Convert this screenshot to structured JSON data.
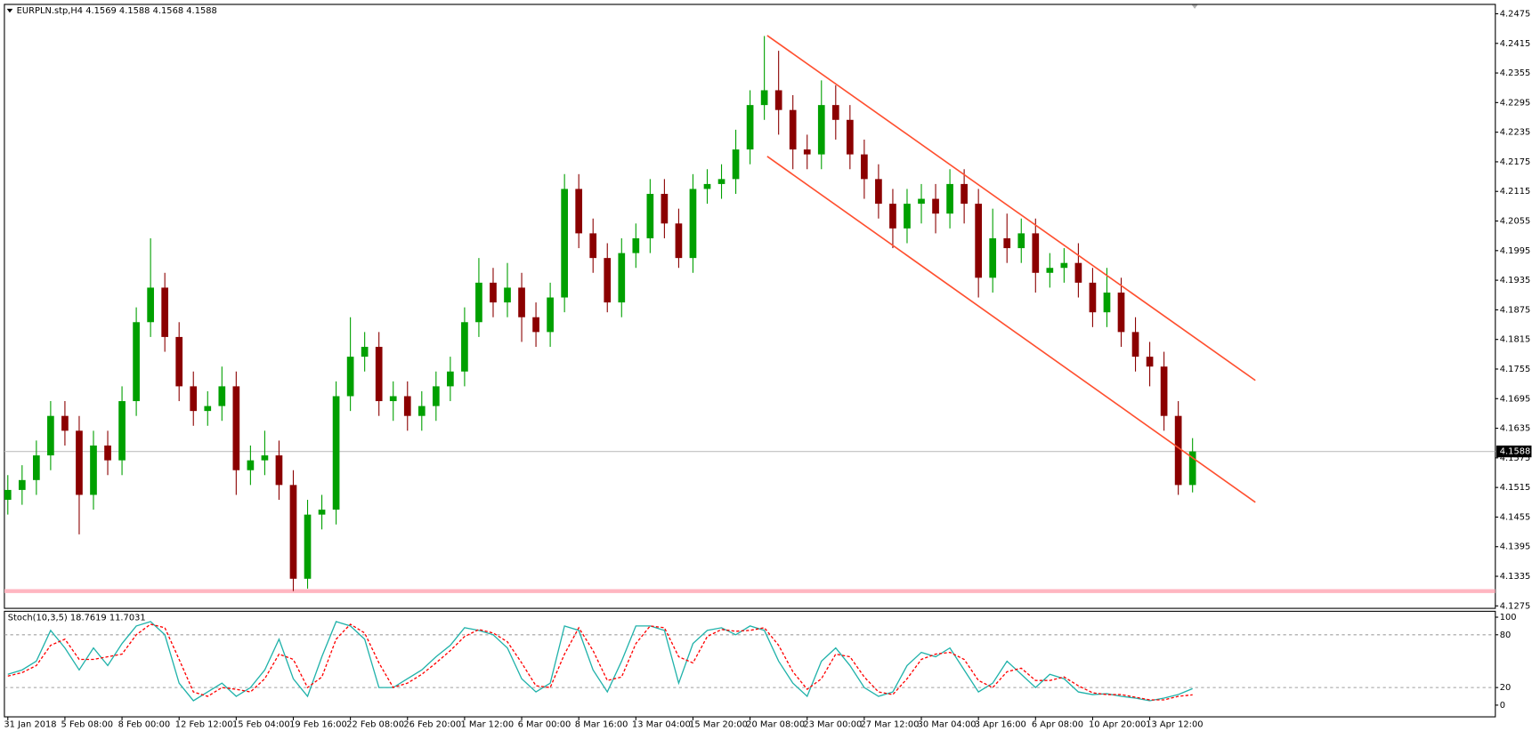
{
  "chart_data": [
    {
      "type": "candlestick",
      "title": "EURPLN.stp,H4",
      "quote": "4.1569 4.1588 4.1568 4.1588",
      "categories": [
        "31 Jan 2018",
        null,
        null,
        null,
        "5 Feb 08:00",
        null,
        null,
        null,
        "8 Feb 00:00",
        null,
        null,
        null,
        "12 Feb 12:00",
        null,
        null,
        null,
        "15 Feb 04:00",
        null,
        null,
        null,
        "19 Feb 16:00",
        null,
        null,
        null,
        "22 Feb 08:00",
        null,
        null,
        null,
        "26 Feb 20:00",
        null,
        null,
        null,
        "1 Mar 12:00",
        null,
        null,
        null,
        "6 Mar 00:00",
        null,
        null,
        null,
        "8 Mar 16:00",
        null,
        null,
        null,
        "13 Mar 04:00",
        null,
        null,
        null,
        "15 Mar 20:00",
        null,
        null,
        null,
        "20 Mar 08:00",
        null,
        null,
        null,
        "23 Mar 00:00",
        null,
        null,
        null,
        "27 Mar 12:00",
        null,
        null,
        null,
        "30 Mar 04:00",
        null,
        null,
        null,
        "3 Apr 16:00",
        null,
        null,
        null,
        "6 Apr 08:00",
        null,
        null,
        null,
        "10 Apr 20:00",
        null,
        null,
        null,
        "13 Apr 12:00",
        null,
        null,
        null
      ],
      "open": [
        4.149,
        4.151,
        4.153,
        4.158,
        4.166,
        4.163,
        4.15,
        4.16,
        4.157,
        4.169,
        4.185,
        4.192,
        4.182,
        4.172,
        4.167,
        4.168,
        4.172,
        4.155,
        4.157,
        4.158,
        4.152,
        4.133,
        4.146,
        4.147,
        4.17,
        4.178,
        4.18,
        4.169,
        4.17,
        4.166,
        4.168,
        4.172,
        4.175,
        4.185,
        4.193,
        4.189,
        4.192,
        4.186,
        4.183,
        4.19,
        4.212,
        4.203,
        4.198,
        4.189,
        4.199,
        4.202,
        4.211,
        4.205,
        4.198,
        4.212,
        4.213,
        4.214,
        4.22,
        4.229,
        4.232,
        4.228,
        4.22,
        4.219,
        4.229,
        4.226,
        4.219,
        4.214,
        4.209,
        4.204,
        4.209,
        4.21,
        4.207,
        4.213,
        4.209,
        4.194,
        4.202,
        4.2,
        4.203,
        4.195,
        4.196,
        4.197,
        4.193,
        4.187,
        4.191,
        4.183,
        4.178,
        4.176,
        4.166,
        4.152
      ],
      "high": [
        4.154,
        4.156,
        4.161,
        4.169,
        4.169,
        4.166,
        4.163,
        4.163,
        4.172,
        4.188,
        4.202,
        4.195,
        4.185,
        4.175,
        4.171,
        4.176,
        4.175,
        4.16,
        4.163,
        4.161,
        4.155,
        4.149,
        4.15,
        4.173,
        4.186,
        4.183,
        4.183,
        4.173,
        4.173,
        4.171,
        4.175,
        4.178,
        4.188,
        4.198,
        4.196,
        4.197,
        4.195,
        4.189,
        4.193,
        4.215,
        4.215,
        4.206,
        4.201,
        4.202,
        4.205,
        4.214,
        4.214,
        4.208,
        4.215,
        4.216,
        4.217,
        4.224,
        4.232,
        4.243,
        4.24,
        4.231,
        4.223,
        4.234,
        4.233,
        4.229,
        4.222,
        4.217,
        4.212,
        4.212,
        4.213,
        4.213,
        4.216,
        4.216,
        4.212,
        4.208,
        4.207,
        4.206,
        4.206,
        4.199,
        4.2,
        4.201,
        4.196,
        4.196,
        4.194,
        4.186,
        4.181,
        4.179,
        4.169,
        4.1615
      ],
      "low": [
        4.146,
        4.148,
        4.15,
        4.155,
        4.16,
        4.142,
        4.147,
        4.154,
        4.154,
        4.166,
        4.182,
        4.179,
        4.169,
        4.164,
        4.164,
        4.165,
        4.15,
        4.152,
        4.154,
        4.149,
        4.1305,
        4.131,
        4.143,
        4.144,
        4.167,
        4.175,
        4.166,
        4.165,
        4.163,
        4.163,
        4.165,
        4.169,
        4.172,
        4.182,
        4.186,
        4.186,
        4.181,
        4.18,
        4.18,
        4.187,
        4.2,
        4.195,
        4.187,
        4.186,
        4.196,
        4.199,
        4.202,
        4.196,
        4.195,
        4.209,
        4.21,
        4.211,
        4.217,
        4.226,
        4.223,
        4.216,
        4.216,
        4.216,
        4.222,
        4.216,
        4.21,
        4.206,
        4.2,
        4.201,
        4.205,
        4.203,
        4.204,
        4.205,
        4.19,
        4.191,
        4.197,
        4.197,
        4.191,
        4.192,
        4.193,
        4.19,
        4.184,
        4.184,
        4.18,
        4.175,
        4.172,
        4.163,
        4.15,
        4.1505
      ],
      "close": [
        4.151,
        4.153,
        4.158,
        4.166,
        4.163,
        4.15,
        4.16,
        4.157,
        4.169,
        4.185,
        4.192,
        4.182,
        4.172,
        4.167,
        4.168,
        4.172,
        4.155,
        4.157,
        4.158,
        4.152,
        4.133,
        4.146,
        4.147,
        4.17,
        4.178,
        4.18,
        4.169,
        4.17,
        4.166,
        4.168,
        4.172,
        4.175,
        4.185,
        4.193,
        4.189,
        4.192,
        4.186,
        4.183,
        4.19,
        4.212,
        4.203,
        4.198,
        4.189,
        4.199,
        4.202,
        4.211,
        4.205,
        4.198,
        4.212,
        4.213,
        4.214,
        4.22,
        4.229,
        4.232,
        4.228,
        4.22,
        4.219,
        4.229,
        4.226,
        4.219,
        4.214,
        4.209,
        4.204,
        4.209,
        4.21,
        4.207,
        4.213,
        4.209,
        4.194,
        4.202,
        4.2,
        4.203,
        4.195,
        4.196,
        4.197,
        4.193,
        4.187,
        4.191,
        4.183,
        4.178,
        4.176,
        4.166,
        4.152,
        4.1588
      ],
      "up_color": "#00a000",
      "down_color": "#8b0000",
      "ylim": [
        4.1271,
        4.2493
      ],
      "yticks": [
        4.2475,
        4.2415,
        4.2355,
        4.2295,
        4.2235,
        4.2175,
        4.2115,
        4.2055,
        4.1995,
        4.1935,
        4.1875,
        4.1815,
        4.1755,
        4.1695,
        4.1635,
        4.1575,
        4.1515,
        4.1455,
        4.1395,
        4.1335,
        4.1275
      ],
      "current_price": 4.1588,
      "levels": [
        {
          "value": 4.1305,
          "color": "#ffb6c1"
        }
      ],
      "trendlines": [
        {
          "x": [
            53.2,
            87.4
          ],
          "y": [
            4.2431,
            4.1732
          ],
          "color": "#ff5030"
        },
        {
          "x": [
            53.2,
            87.4
          ],
          "y": [
            4.2186,
            4.1485
          ],
          "color": "#ff5030"
        }
      ]
    },
    {
      "type": "line",
      "title": "Stoch(10,3,5)",
      "series": [
        {
          "color": "#20b2aa",
          "dashed": false,
          "values": [
            35,
            40,
            50,
            85,
            65,
            40,
            65,
            45,
            70,
            90,
            95,
            80,
            25,
            5,
            15,
            25,
            10,
            20,
            40,
            75,
            30,
            10,
            55,
            95,
            90,
            75,
            20,
            20,
            30,
            40,
            55,
            68,
            88,
            85,
            80,
            65,
            30,
            15,
            25,
            90,
            85,
            40,
            15,
            50,
            90,
            90,
            85,
            25,
            70,
            85,
            88,
            80,
            90,
            85,
            50,
            25,
            10,
            50,
            65,
            45,
            20,
            10,
            15,
            45,
            60,
            55,
            65,
            40,
            15,
            25,
            50,
            35,
            20,
            35,
            30,
            15,
            12,
            13,
            10,
            8,
            5,
            8,
            12,
            18.7619
          ]
        },
        {
          "color": "#ff0000",
          "dashed": true,
          "values": [
            33,
            37,
            45,
            68,
            75,
            52,
            52,
            55,
            58,
            80,
            92,
            88,
            52,
            15,
            10,
            20,
            18,
            15,
            30,
            58,
            52,
            20,
            32,
            75,
            92,
            82,
            48,
            20,
            25,
            35,
            48,
            62,
            78,
            86,
            82,
            72,
            48,
            22,
            20,
            58,
            88,
            62,
            28,
            32,
            70,
            90,
            88,
            55,
            48,
            78,
            86,
            84,
            85,
            88,
            68,
            38,
            18,
            30,
            58,
            55,
            32,
            15,
            12,
            30,
            52,
            58,
            60,
            52,
            28,
            20,
            38,
            42,
            28,
            28,
            32,
            22,
            14,
            12,
            12,
            9,
            6,
            6,
            10,
            11.7031
          ]
        }
      ],
      "ylim": [
        -13.3,
        106.7
      ],
      "yticks": [
        0,
        20,
        80,
        100
      ],
      "grid_ticks": [
        20,
        80
      ]
    }
  ]
}
